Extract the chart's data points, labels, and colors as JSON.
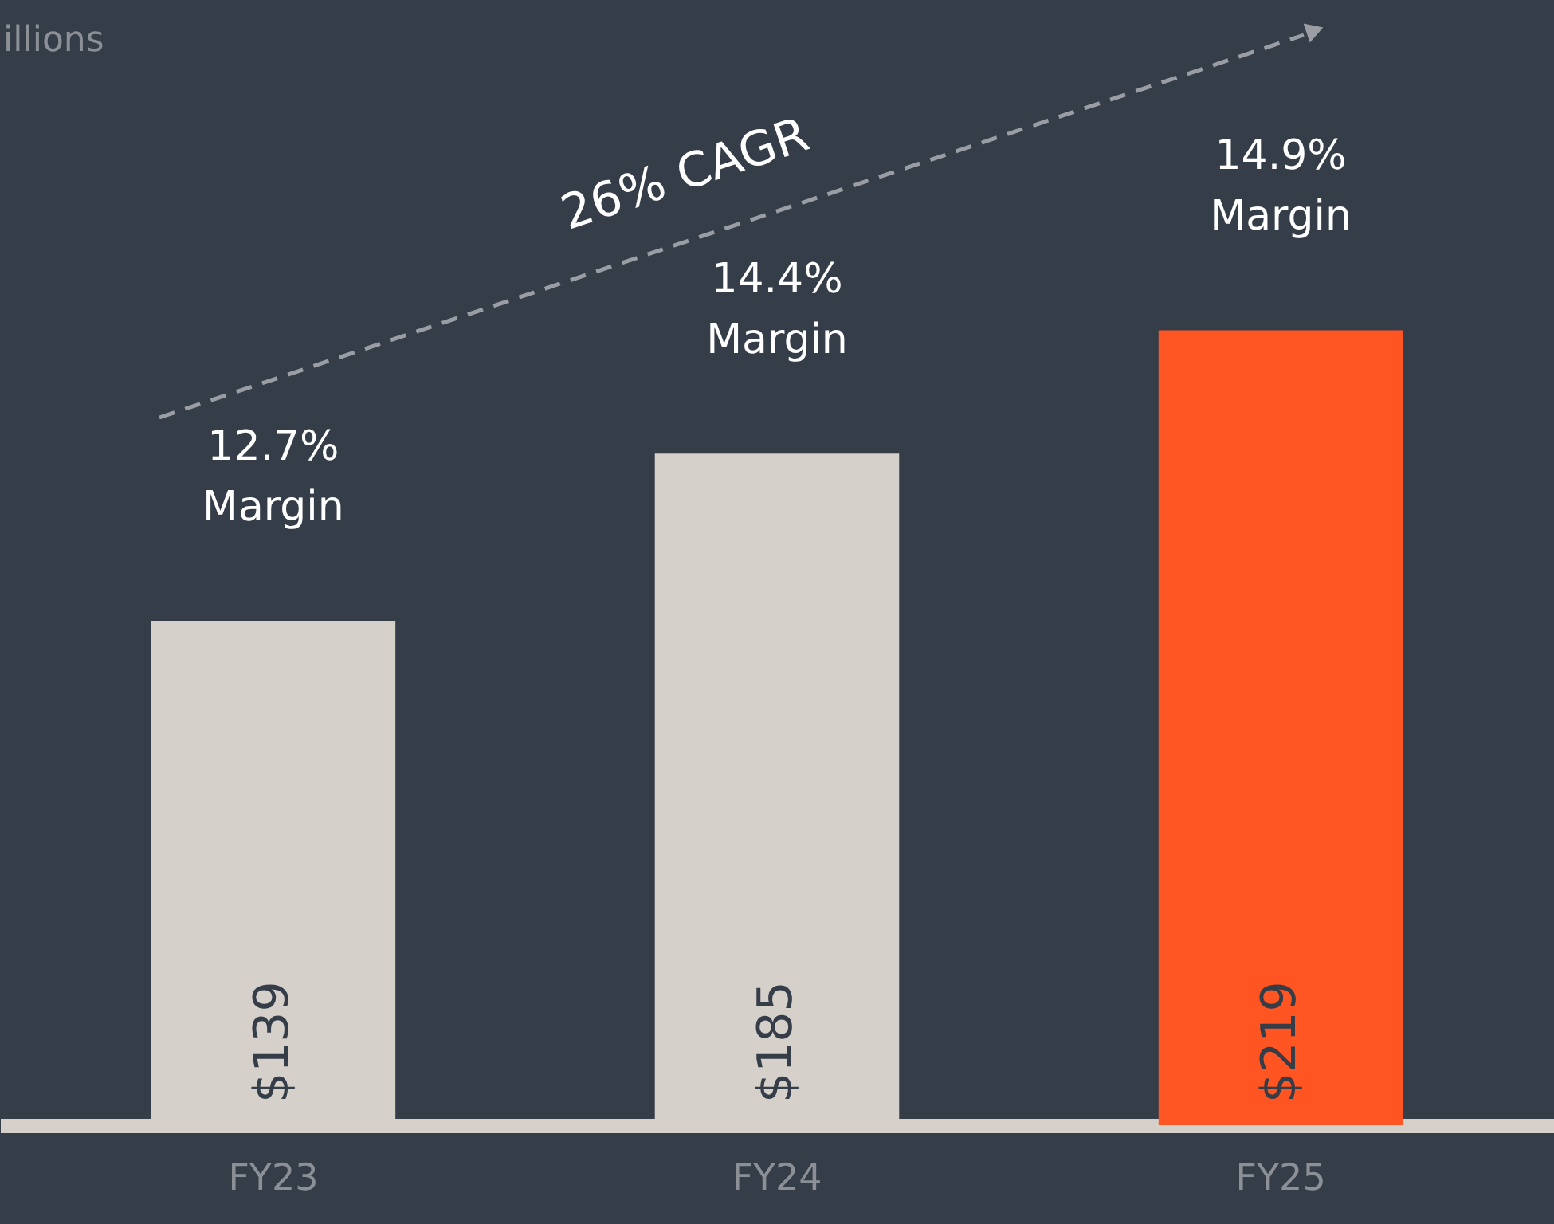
{
  "chart_data": {
    "type": "bar",
    "subtitle": "illions",
    "categories": [
      "FY23",
      "FY24",
      "FY25"
    ],
    "values": [
      139,
      185,
      219
    ],
    "colors": [
      "#d6d0ca",
      "#d6d0ca",
      "#ff5522"
    ],
    "value_labels": [
      "$139",
      "$185",
      "$219"
    ],
    "ylim": [
      0,
      310
    ],
    "tick_labels": "x",
    "grid": false,
    "legend": false,
    "annotations": [
      {
        "text": "12.7%\nMargin",
        "x": "FY23",
        "y": 139
      },
      {
        "text": "14.4%\nMargin",
        "x": "FY24",
        "y": 185
      },
      {
        "text": "14.9%\nMargin",
        "x": "FY25",
        "y": 219
      },
      "26% CAGR"
    ]
  }
}
